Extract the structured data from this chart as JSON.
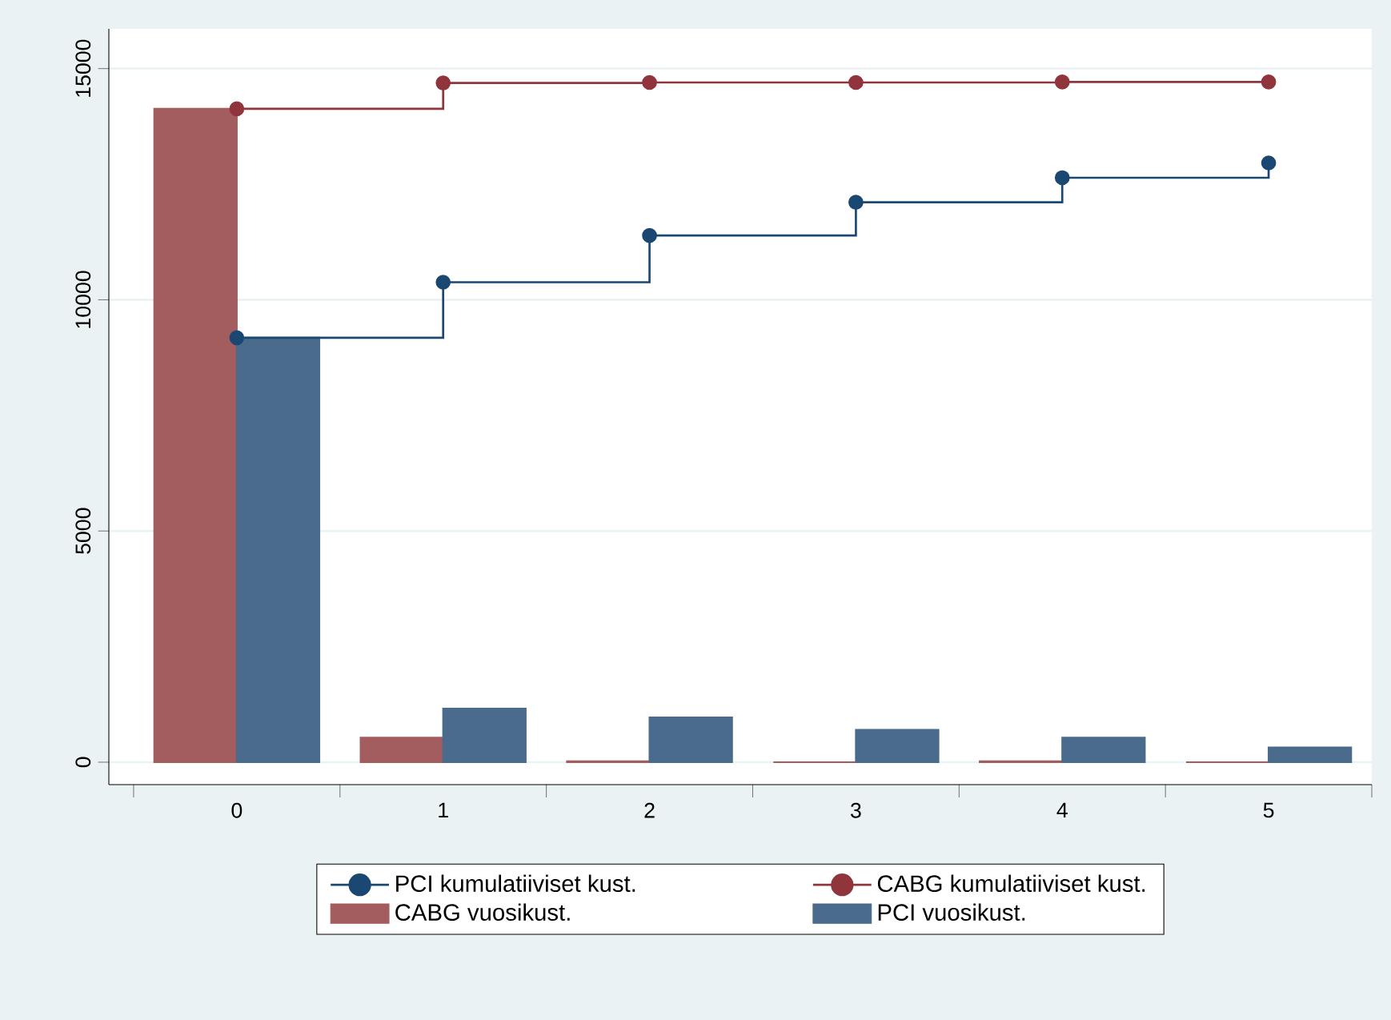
{
  "chart_data": {
    "type": "bar",
    "categories": [
      "0",
      "1",
      "2",
      "3",
      "4",
      "5"
    ],
    "series": [
      {
        "name": "PCI kumulatiiviset kust.",
        "type": "step",
        "color": "#1a4872",
        "values": [
          9180,
          10380,
          11390,
          12110,
          12640,
          12960
        ]
      },
      {
        "name": "CABG kumulatiiviset kust.",
        "type": "step",
        "color": "#90353b",
        "values": [
          14130,
          14690,
          14700,
          14700,
          14710,
          14710
        ]
      },
      {
        "name": "CABG vuosikust.",
        "color": "#a35d5f",
        "values": [
          14130,
          530,
          20,
          0,
          20,
          0
        ]
      },
      {
        "name": "PCI vuosikust.",
        "color": "#4a6b8c",
        "values": [
          9180,
          1160,
          970,
          700,
          530,
          320
        ]
      }
    ],
    "ylim": [
      -485,
      15860
    ],
    "yticks": [
      0,
      5000,
      10000,
      15000
    ],
    "grid": "y",
    "legend": "bottom",
    "marker": "circle",
    "line_style": "solid"
  }
}
